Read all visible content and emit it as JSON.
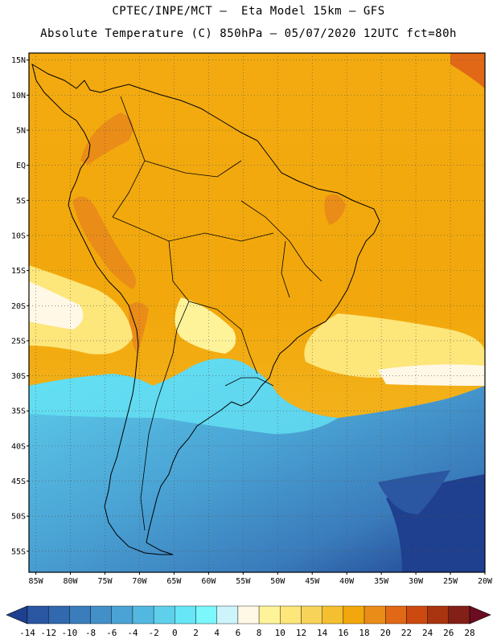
{
  "header": {
    "line1": "CPTEC/INPE/MCT –  Eta Model 15km – GFS",
    "line2": "Absolute Temperature (C) 850hPa – 05/07/2020 12UTC fct=80h"
  },
  "map": {
    "lat_ticks": [
      "15N",
      "10N",
      "5N",
      "EQ",
      "5S",
      "10S",
      "15S",
      "20S",
      "25S",
      "30S",
      "35S",
      "40S",
      "45S",
      "50S",
      "55S"
    ],
    "lat_values": [
      15,
      10,
      5,
      0,
      -5,
      -10,
      -15,
      -20,
      -25,
      -30,
      -35,
      -40,
      -45,
      -50,
      -55
    ],
    "lon_ticks": [
      "85W",
      "80W",
      "75W",
      "70W",
      "65W",
      "60W",
      "55W",
      "50W",
      "45W",
      "40W",
      "35W",
      "30W",
      "25W",
      "20W"
    ],
    "lon_values": [
      -85,
      -80,
      -75,
      -70,
      -65,
      -60,
      -55,
      -50,
      -45,
      -40,
      -35,
      -30,
      -25,
      -20
    ],
    "lon_range": [
      -86,
      -20
    ],
    "lat_range": [
      -58,
      16
    ]
  },
  "colorbar": {
    "labels": [
      "-14",
      "-12",
      "-10",
      "-8",
      "-6",
      "-4",
      "-2",
      "0",
      "2",
      "4",
      "6",
      "8",
      "10",
      "12",
      "14",
      "16",
      "18",
      "20",
      "22",
      "24",
      "26",
      "28"
    ],
    "colors": [
      "#1f3f8f",
      "#2a56a2",
      "#3168ae",
      "#3a7cbc",
      "#4390c8",
      "#4aa3d4",
      "#52b8e0",
      "#5fd0ec",
      "#66e6f6",
      "#7cf7fb",
      "#cdf3fb",
      "#fff8e6",
      "#fff39a",
      "#fde67a",
      "#f7d35a",
      "#f4c030",
      "#f2a80c",
      "#ea8c18",
      "#e06816",
      "#cc4a10",
      "#a83410",
      "#822018",
      "#6c0c20"
    ]
  }
}
